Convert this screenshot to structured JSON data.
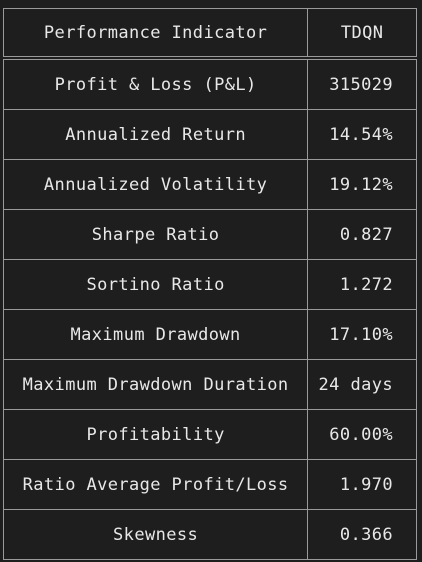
{
  "table": {
    "headers": [
      "Performance Indicator",
      "TDQN"
    ],
    "rows": [
      {
        "label": "Profit & Loss (P&L)",
        "value": "315029"
      },
      {
        "label": "Annualized Return",
        "value": "14.54%"
      },
      {
        "label": "Annualized Volatility",
        "value": "19.12%"
      },
      {
        "label": "Sharpe Ratio",
        "value": "0.827"
      },
      {
        "label": "Sortino Ratio",
        "value": "1.272"
      },
      {
        "label": "Maximum Drawdown",
        "value": "17.10%"
      },
      {
        "label": "Maximum Drawdown Duration",
        "value": "24 days"
      },
      {
        "label": "Profitability",
        "value": "60.00%"
      },
      {
        "label": "Ratio Average Profit/Loss",
        "value": "1.970"
      },
      {
        "label": "Skewness",
        "value": "0.366"
      }
    ]
  },
  "colors": {
    "background": "#1e1e1e",
    "text": "#e8e8e8",
    "border": "#9a9a9a"
  }
}
